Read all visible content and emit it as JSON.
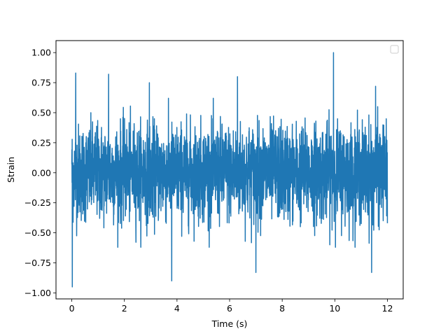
{
  "chart_data": {
    "type": "line",
    "title": "",
    "xlabel": "Time (s)",
    "ylabel": "Strain",
    "xlim": [
      -0.6,
      12.6
    ],
    "ylim": [
      -1.05,
      1.1
    ],
    "xticks": [
      0,
      2,
      4,
      6,
      8,
      10,
      12
    ],
    "xtick_labels": [
      "0",
      "2",
      "4",
      "6",
      "8",
      "10",
      "12"
    ],
    "yticks": [
      -1.0,
      -0.75,
      -0.5,
      -0.25,
      0.0,
      0.25,
      0.5,
      0.75,
      1.0
    ],
    "ytick_labels": [
      "−1.00",
      "−0.75",
      "−0.50",
      "−0.25",
      "0.00",
      "0.25",
      "0.50",
      "0.75",
      "1.00"
    ],
    "grid": false,
    "legend": {
      "placement": "upper-right",
      "entries": []
    },
    "series": [
      {
        "color": "#1f77b4",
        "description": "dense noisy strain signal, 0 to 12 s",
        "t_start": 0,
        "t_end": 12,
        "typical_range": [
          -0.5,
          0.5
        ],
        "notable_points": [
          {
            "x": 0.02,
            "y": -0.95
          },
          {
            "x": 0.15,
            "y": 0.83
          },
          {
            "x": 1.4,
            "y": 0.82
          },
          {
            "x": 2.95,
            "y": 0.75
          },
          {
            "x": 3.8,
            "y": -0.9
          },
          {
            "x": 6.3,
            "y": 0.8
          },
          {
            "x": 7.0,
            "y": -0.83
          },
          {
            "x": 9.95,
            "y": 1.0
          },
          {
            "x": 11.4,
            "y": -0.83
          },
          {
            "x": 11.55,
            "y": 0.72
          }
        ]
      }
    ]
  }
}
